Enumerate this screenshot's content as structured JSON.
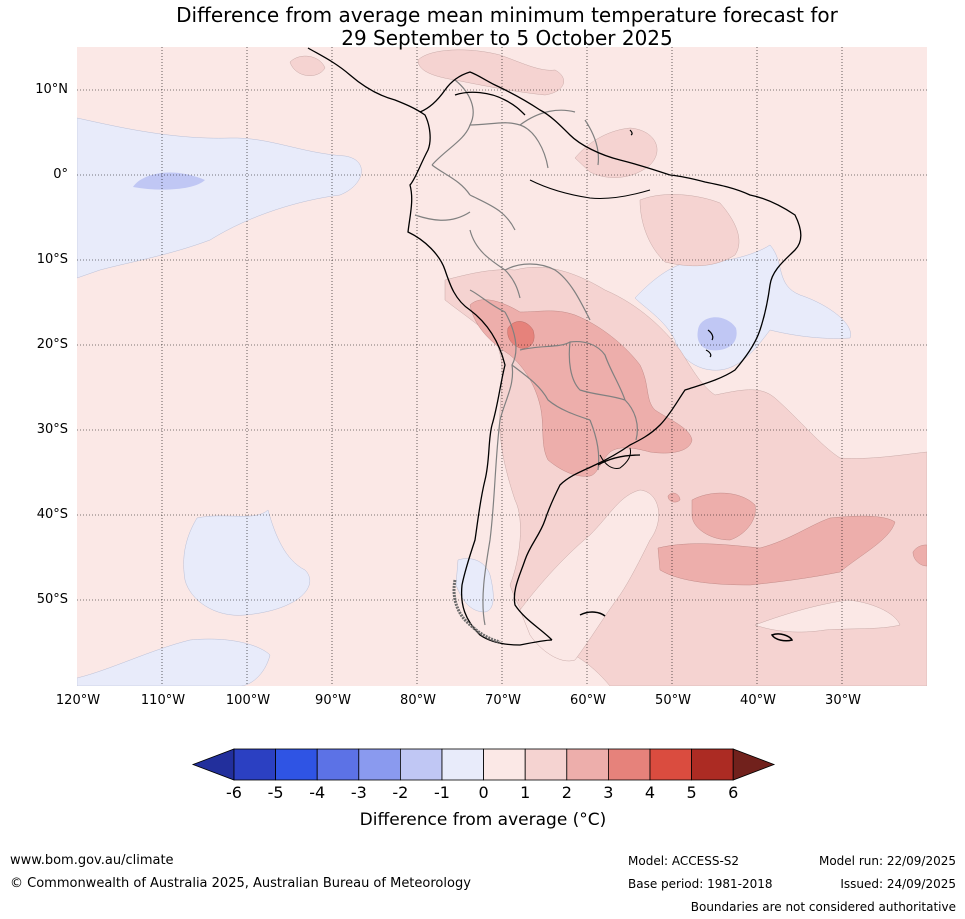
{
  "title": {
    "line1": "Difference from average mean minimum temperature forecast for",
    "line2": "29 September to 5 October 2025"
  },
  "map": {
    "latitude_labels": [
      "10°N",
      "0°",
      "10°S",
      "20°S",
      "30°S",
      "40°S",
      "50°S"
    ],
    "longitude_labels": [
      "120°W",
      "110°W",
      "100°W",
      "90°W",
      "80°W",
      "70°W",
      "60°W",
      "50°W",
      "40°W",
      "30°W"
    ],
    "colors": {
      "background_anomaly": "#fbe8e6",
      "land_outline": "#000000",
      "border_outline": "#808080"
    }
  },
  "colorbar": {
    "ticks": [
      "-6",
      "-5",
      "-4",
      "-3",
      "-2",
      "-1",
      "0",
      "1",
      "2",
      "3",
      "4",
      "5",
      "6"
    ],
    "colors": [
      "#222f9c",
      "#2b40c2",
      "#2f54e4",
      "#5c72e6",
      "#8a9aef",
      "#c0c7f4",
      "#e8ebfa",
      "#fbe8e6",
      "#f5d3d1",
      "#edaeab",
      "#e6827b",
      "#da4c3f",
      "#ac2b23",
      "#71211c"
    ],
    "label": "Difference from average (°C)"
  },
  "footer": {
    "website": "www.bom.gov.au/climate",
    "copyright": "© Commonwealth of Australia 2025, Australian Bureau of Meteorology",
    "model": "Model: ACCESS-S2",
    "base_period": "Base period: 1981-2018",
    "model_run": "Model run: 22/09/2025",
    "issued": "Issued: 24/09/2025",
    "disclaimer": "Boundaries are not considered authoritative"
  }
}
